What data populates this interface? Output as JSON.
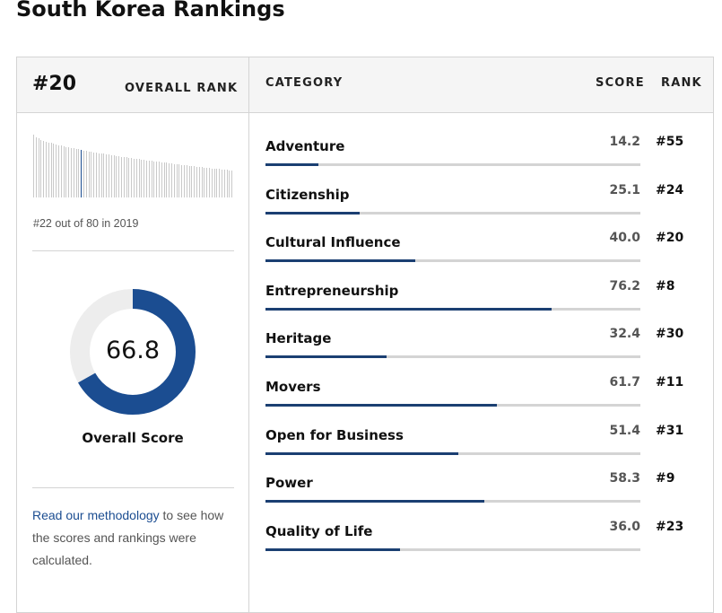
{
  "page": {
    "title": "South Korea Rankings"
  },
  "overall": {
    "rank": "#20",
    "rank_label": "OVERALL RANK",
    "previous": "#22 out of 80 in 2019",
    "score": "66.8",
    "score_fraction": 0.668,
    "score_label": "Overall Score"
  },
  "columns": {
    "category": "CATEGORY",
    "score": "SCORE",
    "rank": "RANK"
  },
  "methodology": {
    "link_text": "Read our methodology",
    "rest_text": " to see how the scores and rankings were calculated."
  },
  "categories": [
    {
      "name": "Adventure",
      "score": "14.2",
      "rank": "#55"
    },
    {
      "name": "Citizenship",
      "score": "25.1",
      "rank": "#24"
    },
    {
      "name": "Cultural Influence",
      "score": "40.0",
      "rank": "#20"
    },
    {
      "name": "Entrepreneurship",
      "score": "76.2",
      "rank": "#8"
    },
    {
      "name": "Heritage",
      "score": "32.4",
      "rank": "#30"
    },
    {
      "name": "Movers",
      "score": "61.7",
      "rank": "#11"
    },
    {
      "name": "Open for Business",
      "score": "51.4",
      "rank": "#31"
    },
    {
      "name": "Power",
      "score": "58.3",
      "rank": "#9"
    },
    {
      "name": "Quality of Life",
      "score": "36.0",
      "rank": "#23"
    }
  ],
  "colors": {
    "accent": "#1b4d91",
    "bar_fill": "#1b3f72",
    "track": "#d4d4d4",
    "donut_bg": "#ededed"
  },
  "icons": {}
}
